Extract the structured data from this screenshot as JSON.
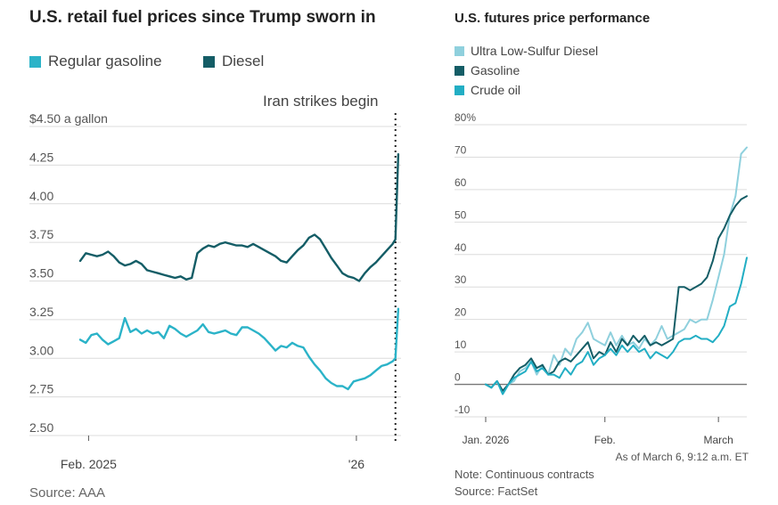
{
  "left_chart": {
    "title": "U.S. retail fuel prices since Trump sworn in",
    "legend": [
      {
        "label": "Regular gasoline",
        "color": "#2bb3c8"
      },
      {
        "label": "Diesel",
        "color": "#145d66"
      }
    ],
    "annotation": "Iran strikes begin",
    "source": "Source: AAA"
  },
  "right_chart": {
    "title": "U.S. futures price performance",
    "legend": [
      {
        "label": "Ultra Low-Sulfur Diesel",
        "color": "#8fd0dd"
      },
      {
        "label": "Gasoline",
        "color": "#145d66"
      },
      {
        "label": "Crude oil",
        "color": "#22aec4"
      }
    ],
    "timestamp": "As of March 6, 9:12 a.m. ET",
    "note": "Note: Continuous contracts",
    "source": "Source: FactSet"
  },
  "chart_data": [
    {
      "type": "line",
      "title": "U.S. retail fuel prices since Trump sworn in",
      "ylabel": "$ a gallon",
      "ylim": [
        2.5,
        4.5
      ],
      "yticks": [
        "$4.50 a gallon",
        "4.25",
        "4.00",
        "3.75",
        "3.50",
        "3.25",
        "3.00",
        "2.75",
        "2.50"
      ],
      "ytick_values": [
        4.5,
        4.25,
        4.0,
        3.75,
        3.5,
        3.25,
        3.0,
        2.75,
        2.5
      ],
      "xlim": [
        0,
        57.5
      ],
      "xticks": [
        {
          "label": "Feb. 2025",
          "value": 1.5
        },
        {
          "label": "'26",
          "value": 49.5
        }
      ],
      "event_line": {
        "label": "Iran strikes begin",
        "value": 56.5
      },
      "series": [
        {
          "name": "Diesel",
          "color": "#145d66",
          "x": [
            0,
            1,
            2,
            3,
            4,
            5,
            6,
            7,
            8,
            9,
            10,
            11,
            12,
            13,
            14,
            15,
            16,
            17,
            18,
            19,
            20,
            21,
            22,
            23,
            24,
            25,
            26,
            27,
            28,
            29,
            30,
            31,
            32,
            33,
            34,
            35,
            36,
            37,
            38,
            39,
            40,
            41,
            42,
            43,
            44,
            45,
            46,
            47,
            48,
            49,
            50,
            51,
            52,
            53,
            54,
            55,
            56,
            56.5,
            57
          ],
          "values": [
            3.63,
            3.68,
            3.67,
            3.66,
            3.67,
            3.69,
            3.66,
            3.62,
            3.6,
            3.61,
            3.63,
            3.61,
            3.57,
            3.56,
            3.55,
            3.54,
            3.53,
            3.52,
            3.53,
            3.51,
            3.52,
            3.68,
            3.71,
            3.73,
            3.72,
            3.74,
            3.75,
            3.74,
            3.73,
            3.73,
            3.72,
            3.74,
            3.72,
            3.7,
            3.68,
            3.66,
            3.63,
            3.62,
            3.66,
            3.7,
            3.73,
            3.78,
            3.8,
            3.77,
            3.71,
            3.65,
            3.6,
            3.55,
            3.53,
            3.52,
            3.5,
            3.55,
            3.59,
            3.62,
            3.66,
            3.7,
            3.74,
            3.77,
            4.32
          ]
        },
        {
          "name": "Regular gasoline",
          "color": "#2bb3c8",
          "x": [
            0,
            1,
            2,
            3,
            4,
            5,
            6,
            7,
            8,
            9,
            10,
            11,
            12,
            13,
            14,
            15,
            16,
            17,
            18,
            19,
            20,
            21,
            22,
            23,
            24,
            25,
            26,
            27,
            28,
            29,
            30,
            31,
            32,
            33,
            34,
            35,
            36,
            37,
            38,
            39,
            40,
            41,
            42,
            43,
            44,
            45,
            46,
            47,
            48,
            49,
            50,
            51,
            52,
            53,
            54,
            55,
            56,
            56.5,
            57
          ],
          "values": [
            3.12,
            3.1,
            3.15,
            3.16,
            3.12,
            3.09,
            3.11,
            3.13,
            3.26,
            3.17,
            3.19,
            3.16,
            3.18,
            3.16,
            3.17,
            3.13,
            3.21,
            3.19,
            3.16,
            3.14,
            3.16,
            3.18,
            3.22,
            3.17,
            3.16,
            3.17,
            3.18,
            3.16,
            3.15,
            3.2,
            3.2,
            3.18,
            3.16,
            3.13,
            3.09,
            3.05,
            3.08,
            3.07,
            3.1,
            3.08,
            3.07,
            3.01,
            2.96,
            2.92,
            2.87,
            2.84,
            2.82,
            2.82,
            2.8,
            2.85,
            2.86,
            2.87,
            2.89,
            2.92,
            2.95,
            2.96,
            2.98,
            3.0,
            3.32
          ]
        }
      ]
    },
    {
      "type": "line",
      "title": "U.S. futures price performance",
      "ylabel": "%",
      "ylim": [
        -10,
        80
      ],
      "yticks": [
        "80%",
        "70",
        "60",
        "50",
        "40",
        "30",
        "20",
        "10",
        "0",
        "-10"
      ],
      "ytick_values": [
        80,
        70,
        60,
        50,
        40,
        30,
        20,
        10,
        0,
        -10
      ],
      "xlim": [
        0,
        46
      ],
      "xticks": [
        {
          "label": "Jan. 2026",
          "value": 0
        },
        {
          "label": "Feb.",
          "value": 21
        },
        {
          "label": "March",
          "value": 41
        }
      ],
      "series": [
        {
          "name": "Ultra Low-Sulfur Diesel",
          "color": "#8fd0dd",
          "x": [
            0,
            1,
            2,
            3,
            4,
            5,
            6,
            7,
            8,
            9,
            10,
            11,
            12,
            13,
            14,
            15,
            16,
            17,
            18,
            19,
            20,
            21,
            22,
            23,
            24,
            25,
            26,
            27,
            28,
            29,
            30,
            31,
            32,
            33,
            34,
            35,
            36,
            37,
            38,
            39,
            40,
            41,
            42,
            43,
            44,
            45,
            46
          ],
          "values": [
            0,
            -1,
            1,
            -3,
            0,
            1,
            4,
            5,
            7,
            3,
            6,
            3,
            9,
            6,
            11,
            9,
            14,
            16,
            19,
            14,
            13,
            12,
            16,
            12,
            15,
            12,
            13,
            11,
            14,
            12,
            14,
            18,
            14,
            15,
            16,
            17,
            20,
            19,
            20,
            20,
            26,
            33,
            40,
            52,
            58,
            71,
            73
          ]
        },
        {
          "name": "Gasoline",
          "color": "#145d66",
          "x": [
            0,
            1,
            2,
            3,
            4,
            5,
            6,
            7,
            8,
            9,
            10,
            11,
            12,
            13,
            14,
            15,
            16,
            17,
            18,
            19,
            20,
            21,
            22,
            23,
            24,
            25,
            26,
            27,
            28,
            29,
            30,
            31,
            32,
            33,
            34,
            35,
            36,
            37,
            38,
            39,
            40,
            41,
            42,
            43,
            44,
            45,
            46
          ],
          "values": [
            0,
            -1,
            1,
            -2,
            0,
            3,
            5,
            6,
            8,
            5,
            6,
            3,
            4,
            7,
            8,
            7,
            9,
            11,
            13,
            8,
            10,
            9,
            13,
            10,
            14,
            12,
            15,
            13,
            15,
            12,
            13,
            12,
            13,
            14,
            30,
            30,
            29,
            30,
            31,
            33,
            38,
            45,
            48,
            52,
            55,
            57,
            58
          ]
        },
        {
          "name": "Crude oil",
          "color": "#22aec4",
          "x": [
            0,
            1,
            2,
            3,
            4,
            5,
            6,
            7,
            8,
            9,
            10,
            11,
            12,
            13,
            14,
            15,
            16,
            17,
            18,
            19,
            20,
            21,
            22,
            23,
            24,
            25,
            26,
            27,
            28,
            29,
            30,
            31,
            32,
            33,
            34,
            35,
            36,
            37,
            38,
            39,
            40,
            41,
            42,
            43,
            44,
            45,
            46
          ],
          "values": [
            0,
            -1,
            1,
            -3,
            0,
            2,
            3,
            4,
            7,
            4,
            5,
            3,
            3,
            2,
            5,
            3,
            6,
            7,
            10,
            6,
            8,
            9,
            11,
            9,
            12,
            10,
            12,
            10,
            11,
            8,
            10,
            9,
            8,
            10,
            13,
            14,
            14,
            15,
            14,
            14,
            13,
            15,
            18,
            24,
            25,
            31,
            39
          ]
        }
      ]
    }
  ]
}
